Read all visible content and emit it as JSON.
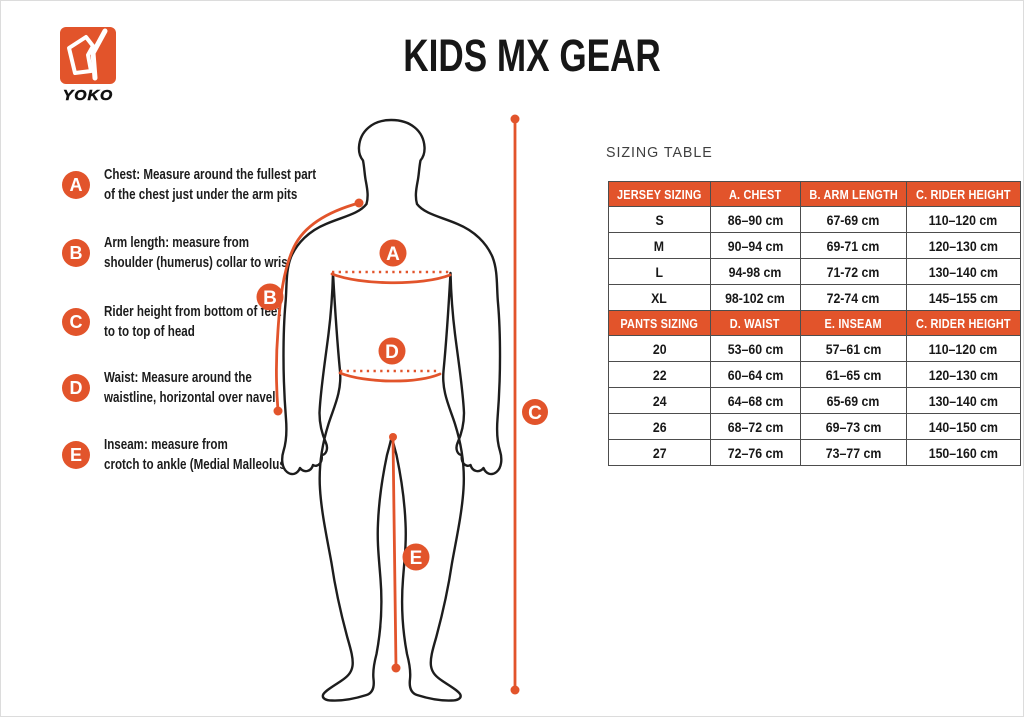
{
  "page": {
    "title": "KIDS MX GEAR"
  },
  "logo": {
    "brand": "YOKO"
  },
  "colors": {
    "accent": "#e2542b",
    "ink": "#1c1c1c",
    "table_border": "#4d4d4d"
  },
  "measurements": [
    {
      "letter": "A",
      "lines": [
        "Chest: Measure around  the fullest part",
        "of the chest just under the arm pits"
      ]
    },
    {
      "letter": "B",
      "lines": [
        "Arm length: measure from",
        "shoulder (humerus) collar to wrist"
      ]
    },
    {
      "letter": "C",
      "lines": [
        "Rider height from bottom of feet",
        "to to top of head"
      ]
    },
    {
      "letter": "D",
      "lines": [
        "Waist: Measure around the",
        "waistline, horizontal over navel"
      ]
    },
    {
      "letter": "E",
      "lines": [
        "Inseam: measure from",
        "crotch to ankle (Medial Malleolus)"
      ]
    }
  ],
  "sizing_table": {
    "heading": "SIZING TABLE",
    "sections": [
      {
        "header": [
          "JERSEY SIZING",
          "A. CHEST",
          "B. ARM LENGTH",
          "C. RIDER HEIGHT"
        ],
        "rows": [
          [
            "S",
            "86–90 cm",
            "67-69 cm",
            "110–120 cm"
          ],
          [
            "M",
            "90–94 cm",
            "69-71 cm",
            "120–130 cm"
          ],
          [
            "L",
            "94-98 cm",
            "71-72 cm",
            "130–140 cm"
          ],
          [
            "XL",
            "98-102 cm",
            "72-74 cm",
            "145–155 cm"
          ]
        ]
      },
      {
        "header": [
          "PANTS SIZING",
          "D. WAIST",
          "E. INSEAM",
          "C. RIDER HEIGHT"
        ],
        "rows": [
          [
            "20",
            "53–60 cm",
            "57–61 cm",
            "110–120 cm"
          ],
          [
            "22",
            "60–64 cm",
            "61–65 cm",
            "120–130 cm"
          ],
          [
            "24",
            "64–68 cm",
            "65-69 cm",
            "130–140 cm"
          ],
          [
            "26",
            "68–72 cm",
            "69–73 cm",
            "140–150 cm"
          ],
          [
            "27",
            "72–76 cm",
            "73–77 cm",
            "150–160 cm"
          ]
        ]
      }
    ]
  }
}
